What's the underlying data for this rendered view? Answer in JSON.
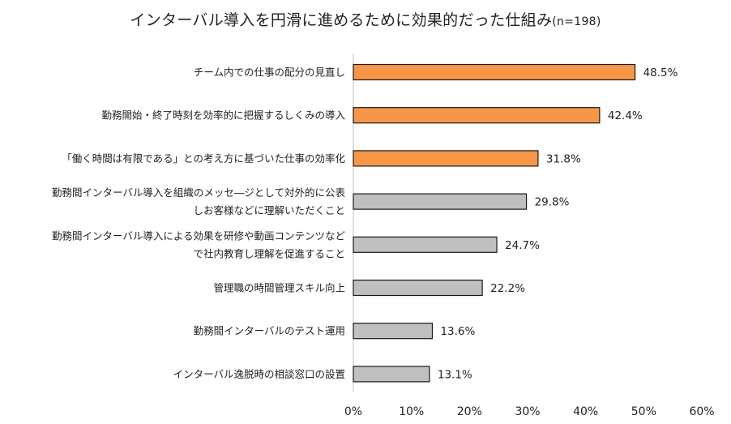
{
  "chart_data": {
    "type": "bar",
    "orientation": "horizontal",
    "title": "インターバル導入を円滑に進めるために効果的だった仕組み",
    "sample_size_label": "(n=198)",
    "xlim": [
      0,
      60
    ],
    "xticks": [
      "0%",
      "10%",
      "20%",
      "30%",
      "40%",
      "50%",
      "60%"
    ],
    "xtick_values": [
      0,
      10,
      20,
      30,
      40,
      50,
      60
    ],
    "categories": [
      [
        "チーム内での仕事の配分の見直し"
      ],
      [
        "勤務開始・終了時刻を効率的に把握するしくみの導入"
      ],
      [
        "「働く時間は有限である」との考え方に基づいた仕事の効率化"
      ],
      [
        "勤務間インターバル導入を組織のメッセ―ジとして対外的に公表",
        "しお客様などに理解いただくこと"
      ],
      [
        "勤務間インターバル導入による効果を研修や動画コンテンツなど",
        "で社内教育し理解を促進すること"
      ],
      [
        "管理職の時間管理スキル向上"
      ],
      [
        "勤務間インターバルのテスト運用"
      ],
      [
        "インターバル逸脱時の相談窓口の設置"
      ]
    ],
    "values": [
      48.5,
      42.4,
      31.8,
      29.8,
      24.7,
      22.2,
      13.6,
      13.1
    ],
    "value_labels": [
      "48.5%",
      "42.4%",
      "31.8%",
      "29.8%",
      "24.7%",
      "22.2%",
      "13.6%",
      "13.1%"
    ],
    "highlight": [
      true,
      true,
      true,
      false,
      false,
      false,
      false,
      false
    ],
    "colors": {
      "highlight": "#F79646",
      "normal": "#BFBFBF",
      "outline": "#1a1a1a"
    }
  }
}
